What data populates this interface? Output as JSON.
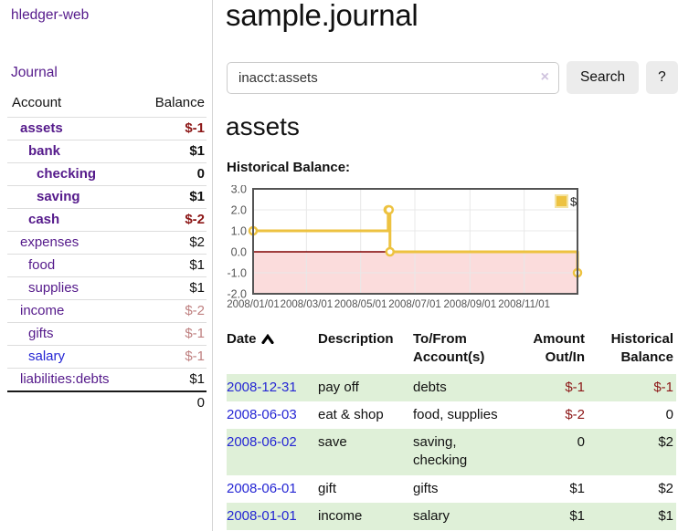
{
  "colors": {
    "purple_link": "#551a8b",
    "blue_link": "#2526d4",
    "negative": "#8c1616",
    "dim_negative": "#bf8080",
    "row_green": "#dff0d8",
    "row_border": "#dddddd",
    "divider": "#d4d4d4",
    "button_bg": "#ececec",
    "input_border": "#cccccc",
    "clear_icon": "#cfc3de",
    "chart_series": "#edc240",
    "chart_series_border": "#f4e3a1",
    "chart_negative_bg": "#fbdcdc",
    "chart_zero_line": "#800000",
    "chart_border": "#545454",
    "chart_grid": "#e8e8e8",
    "chart_text": "#545454"
  },
  "sidebar": {
    "brand": "hledger-web",
    "journal_link": "Journal",
    "accounts_table": {
      "headers": [
        "Account",
        "Balance"
      ],
      "rows": [
        {
          "name": "assets",
          "balance": "$-1",
          "level": 1,
          "bold": true,
          "link": "purple",
          "balance_style": "neg"
        },
        {
          "name": "bank",
          "balance": "$1",
          "level": 2,
          "bold": true,
          "link": "purple",
          "balance_style": "plain"
        },
        {
          "name": "checking",
          "balance": "0",
          "level": 3,
          "bold": true,
          "link": "purple",
          "balance_style": "plain"
        },
        {
          "name": "saving",
          "balance": "$1",
          "level": 3,
          "bold": true,
          "link": "purple",
          "balance_style": "plain"
        },
        {
          "name": "cash",
          "balance": "$-2",
          "level": 2,
          "bold": true,
          "link": "purple",
          "balance_style": "neg"
        },
        {
          "name": "expenses",
          "balance": "$2",
          "level": 1,
          "bold": false,
          "link": "purple",
          "balance_style": "plain"
        },
        {
          "name": "food",
          "balance": "$1",
          "level": 2,
          "bold": false,
          "link": "purple",
          "balance_style": "plain"
        },
        {
          "name": "supplies",
          "balance": "$1",
          "level": 2,
          "bold": false,
          "link": "purple",
          "balance_style": "plain"
        },
        {
          "name": "income",
          "balance": "$-2",
          "level": 1,
          "bold": false,
          "link": "purple",
          "balance_style": "dim-neg"
        },
        {
          "name": "gifts",
          "balance": "$-1",
          "level": 2,
          "bold": false,
          "link": "purple",
          "balance_style": "dim-neg"
        },
        {
          "name": "salary",
          "balance": "$-1",
          "level": 2,
          "bold": false,
          "link": "blue",
          "balance_style": "dim-neg"
        },
        {
          "name": "liabilities:debts",
          "balance": "$1",
          "level": 1,
          "bold": false,
          "link": "purple",
          "balance_style": "plain"
        }
      ],
      "total": "0"
    }
  },
  "main": {
    "title": "sample.journal",
    "search": {
      "value": "inacct:assets",
      "clear_icon": "×",
      "button_label": "Search",
      "help_label": "?"
    },
    "account_heading": "assets",
    "chart_label": "Historical Balance:"
  },
  "chart_data": {
    "type": "line",
    "style": "step",
    "title": "Historical Balance",
    "series": [
      {
        "name": "$",
        "points": [
          {
            "date": "2008-01-01",
            "value": 1
          },
          {
            "date": "2008-06-01",
            "value": 2
          },
          {
            "date": "2008-06-02",
            "value": 2
          },
          {
            "date": "2008-06-03",
            "value": 0
          },
          {
            "date": "2008-12-31",
            "value": -1
          }
        ]
      }
    ],
    "x_range": [
      "2008-01-01",
      "2008-12-31"
    ],
    "ylim": [
      -2,
      3
    ],
    "y_ticks": [
      "3.0",
      "2.0",
      "1.0",
      "0.0",
      "-1.0",
      "-2.0"
    ],
    "x_ticks": [
      "2008/01/01",
      "2008/03/01",
      "2008/05/01",
      "2008/07/01",
      "2008/09/01",
      "2008/11/01"
    ],
    "legend": {
      "label": "$",
      "position": "top-right"
    },
    "grid": true,
    "negative_region_highlighted": true,
    "zero_line": true
  },
  "transactions": {
    "headers": [
      "Date",
      "Description",
      "To/From Account(s)",
      "Amount Out/In",
      "Historical Balance"
    ],
    "sort": {
      "column": "Date",
      "direction": "ascending"
    },
    "rows": [
      {
        "date": "2008-12-31",
        "description": "pay off",
        "accounts": "debts",
        "amount": "$-1",
        "amount_style": "neg",
        "balance": "$-1",
        "balance_style": "neg"
      },
      {
        "date": "2008-06-03",
        "description": "eat & shop",
        "accounts": "food, supplies",
        "amount": "$-2",
        "amount_style": "neg",
        "balance": "0",
        "balance_style": "plain"
      },
      {
        "date": "2008-06-02",
        "description": "save",
        "accounts": "saving, checking",
        "amount": "0",
        "amount_style": "plain",
        "balance": "$2",
        "balance_style": "plain"
      },
      {
        "date": "2008-06-01",
        "description": "gift",
        "accounts": "gifts",
        "amount": "$1",
        "amount_style": "plain",
        "balance": "$2",
        "balance_style": "plain"
      },
      {
        "date": "2008-01-01",
        "description": "income",
        "accounts": "salary",
        "amount": "$1",
        "amount_style": "plain",
        "balance": "$1",
        "balance_style": "plain"
      }
    ]
  }
}
